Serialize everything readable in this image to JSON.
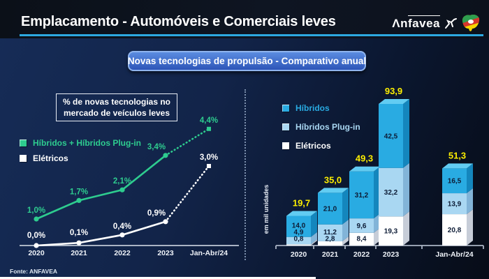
{
  "header": {
    "title": "Emplacamento - Automóveis e Comerciais leves",
    "logo_prefix": "Λn",
    "logo_overline": "favea",
    "accent_color": "#2da9e1"
  },
  "subtitle_banner": "Novas tecnologias de propulsão - Comparativo anual",
  "footer": {
    "source": "Fonte: ANFAVEA"
  },
  "left_chart_box": {
    "line1": "% de novas tecnologias no",
    "line2": "mercado de veículos leves"
  },
  "chart_data": [
    {
      "type": "line",
      "title": "% de novas tecnologias no mercado de veículos leves",
      "categories": [
        "2020",
        "2021",
        "2022",
        "2023",
        "Jan-Abr/24"
      ],
      "series": [
        {
          "name": "Híbridos + Híbridos Plug-in",
          "color": "#2ecc8f",
          "values": [
            1.0,
            1.7,
            2.1,
            3.4,
            4.4
          ],
          "labels": [
            "1,0%",
            "1,7%",
            "2,1%",
            "3,4%",
            "4,4%"
          ],
          "dashed_from_index": 3
        },
        {
          "name": "Elétricos",
          "color": "#ffffff",
          "values": [
            0.0,
            0.1,
            0.4,
            0.9,
            3.0
          ],
          "labels": [
            "0,0%",
            "0,1%",
            "0,4%",
            "0,9%",
            "3,0%"
          ],
          "dashed_from_index": 3
        }
      ],
      "ylim": [
        0,
        5
      ],
      "grid": false,
      "legend_position": "upper-left"
    },
    {
      "type": "bar",
      "stacked": true,
      "categories": [
        "2020",
        "2021",
        "2022",
        "2023",
        "Jan-Abr/24"
      ],
      "series": [
        {
          "name": "Elétricos",
          "color": "#ffffff",
          "side_color": "#c7cdd8",
          "top_color": "#eef2f6",
          "values": [
            0.8,
            2.8,
            8.4,
            19.3,
            20.8
          ],
          "labels": [
            "0,8",
            "2,8",
            "8,4",
            "19,3",
            "20,8"
          ]
        },
        {
          "name": "Híbridos Plug-in",
          "color": "#a9d7f2",
          "side_color": "#82b4d8",
          "top_color": "#c4e4f8",
          "values": [
            4.9,
            11.2,
            9.6,
            32.2,
            13.9
          ],
          "labels": [
            "4,9",
            "11,2",
            "9,6",
            "32,2",
            "13,9"
          ]
        },
        {
          "name": "Híbridos",
          "color": "#29abe2",
          "side_color": "#1486bd",
          "top_color": "#62ccf2",
          "values": [
            14.0,
            21.0,
            31.2,
            42.5,
            16.5
          ],
          "labels": [
            "14,0",
            "21,0",
            "31,2",
            "42,5",
            "16,5"
          ]
        }
      ],
      "totals": [
        19.7,
        35.0,
        49.3,
        93.9,
        51.3
      ],
      "total_labels": [
        "19,7",
        "35,0",
        "49,3",
        "93,9",
        "51,3"
      ],
      "total_color": "#fdee00",
      "value_label_color": "#0c1b35",
      "ylabel": "em mil unidades",
      "grid": false,
      "legend_order": [
        "Híbridos",
        "Híbridos Plug-in",
        "Elétricos"
      ]
    }
  ],
  "legend_right_colors": {
    "Híbridos": "#29abe2",
    "Híbridos Plug-in": "#a9d7f2",
    "Elétricos": "#ffffff"
  }
}
